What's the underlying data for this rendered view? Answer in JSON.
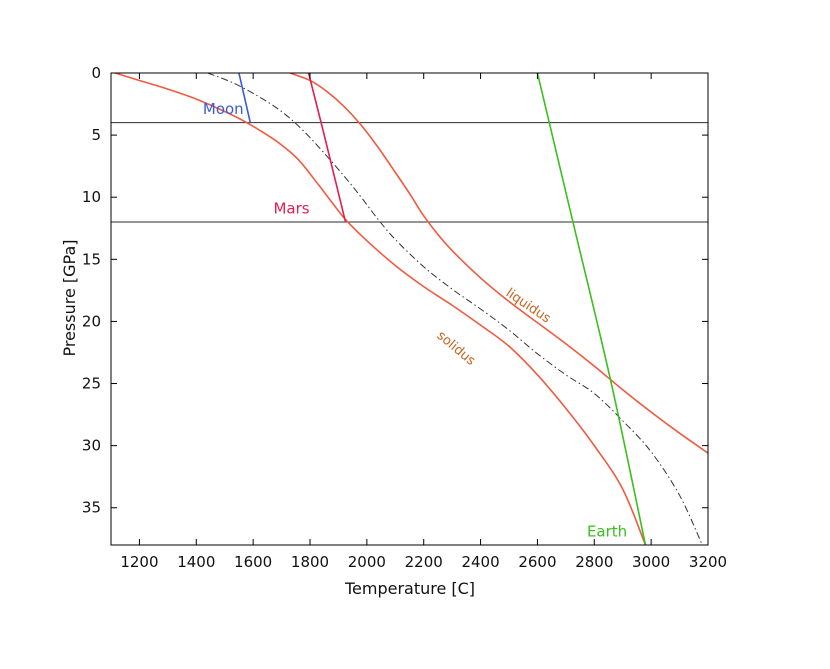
{
  "chart_data": {
    "type": "line",
    "title": "",
    "xlabel": "Temperature [C]",
    "ylabel": "Pressure [GPa]",
    "xlim": [
      1100,
      3200
    ],
    "ylim": [
      0,
      38
    ],
    "y_inverted": true,
    "grid": false,
    "xticks": [
      1200,
      1400,
      1600,
      1800,
      2000,
      2200,
      2400,
      2600,
      2800,
      3000,
      3200
    ],
    "yticks": [
      0,
      5,
      10,
      15,
      20,
      25,
      30,
      35
    ],
    "hlines": [
      {
        "name": "moon-pressure",
        "y": 4,
        "color": "#2b2b2b"
      },
      {
        "name": "mars-pressure",
        "y": 12,
        "color": "#2b2b2b"
      }
    ],
    "series": [
      {
        "name": "solidus",
        "color": "#f05a40",
        "style": "solid",
        "points": [
          [
            1115,
            0
          ],
          [
            1200,
            0.6
          ],
          [
            1300,
            1.3
          ],
          [
            1400,
            2.1
          ],
          [
            1500,
            3.1
          ],
          [
            1570,
            3.9
          ],
          [
            1650,
            5.0
          ],
          [
            1700,
            5.8
          ],
          [
            1760,
            7.0
          ],
          [
            1830,
            9.0
          ],
          [
            1880,
            10.5
          ],
          [
            1925,
            11.8
          ],
          [
            2000,
            13.5
          ],
          [
            2100,
            15.5
          ],
          [
            2200,
            17.2
          ],
          [
            2300,
            18.7
          ],
          [
            2400,
            20.3
          ],
          [
            2500,
            22.0
          ],
          [
            2600,
            24.3
          ],
          [
            2700,
            27.0
          ],
          [
            2800,
            30.0
          ],
          [
            2900,
            33.5
          ],
          [
            2980,
            38
          ]
        ]
      },
      {
        "name": "liquidus",
        "color": "#f05a40",
        "style": "solid",
        "points": [
          [
            1730,
            0
          ],
          [
            1800,
            0.6
          ],
          [
            1860,
            1.5
          ],
          [
            1920,
            2.7
          ],
          [
            1980,
            4.2
          ],
          [
            2040,
            6.0
          ],
          [
            2100,
            8.0
          ],
          [
            2150,
            9.7
          ],
          [
            2200,
            11.5
          ],
          [
            2250,
            13.0
          ],
          [
            2300,
            14.3
          ],
          [
            2400,
            16.5
          ],
          [
            2500,
            18.4
          ],
          [
            2600,
            20.1
          ],
          [
            2700,
            21.8
          ],
          [
            2800,
            23.6
          ],
          [
            2900,
            25.5
          ],
          [
            3000,
            27.3
          ],
          [
            3100,
            29.0
          ],
          [
            3200,
            30.6
          ]
        ]
      },
      {
        "name": "adiabat",
        "color": "#333333",
        "style": "dashdot",
        "points": [
          [
            1440,
            0
          ],
          [
            1530,
            0.8
          ],
          [
            1620,
            1.9
          ],
          [
            1700,
            3.1
          ],
          [
            1770,
            4.5
          ],
          [
            1840,
            6.2
          ],
          [
            1920,
            8.3
          ],
          [
            1980,
            10.0
          ],
          [
            2040,
            11.8
          ],
          [
            2100,
            13.4
          ],
          [
            2200,
            15.6
          ],
          [
            2300,
            17.4
          ],
          [
            2400,
            19.0
          ],
          [
            2500,
            20.7
          ],
          [
            2600,
            22.6
          ],
          [
            2700,
            24.3
          ],
          [
            2800,
            25.8
          ],
          [
            2900,
            28.0
          ],
          [
            3000,
            30.5
          ],
          [
            3100,
            34.0
          ],
          [
            3180,
            38
          ]
        ]
      },
      {
        "name": "Moon",
        "color": "#3a5bd9",
        "style": "solid",
        "points": [
          [
            1550,
            0
          ],
          [
            1590,
            4
          ]
        ]
      },
      {
        "name": "Mars",
        "color": "#e11f4d",
        "style": "solid",
        "points": [
          [
            1795,
            0
          ],
          [
            1850,
            5
          ],
          [
            1925,
            12
          ]
        ]
      },
      {
        "name": "Earth",
        "color": "#3bbf1f",
        "style": "solid",
        "points": [
          [
            2600,
            0
          ],
          [
            2725,
            12
          ],
          [
            2860,
            25
          ],
          [
            2980,
            38
          ]
        ]
      }
    ],
    "annotations": [
      {
        "name": "moon-label",
        "text": "Moon",
        "x": 1495,
        "y": 3.3,
        "color": "#3a5bd9",
        "rotate": 0
      },
      {
        "name": "mars-label",
        "text": "Mars",
        "x": 1735,
        "y": 11.3,
        "color": "#e11f4d",
        "rotate": 0
      },
      {
        "name": "earth-label",
        "text": "Earth",
        "x": 2845,
        "y": 37.3,
        "color": "#3bbf1f",
        "rotate": 0
      },
      {
        "name": "liquidus-label",
        "text": "liquidus",
        "x": 2560,
        "y": 19.0,
        "color": "#c8641e",
        "rotate": 34
      },
      {
        "name": "solidus-label",
        "text": "solidus",
        "x": 2305,
        "y": 22.4,
        "color": "#c8641e",
        "rotate": 40
      }
    ]
  }
}
